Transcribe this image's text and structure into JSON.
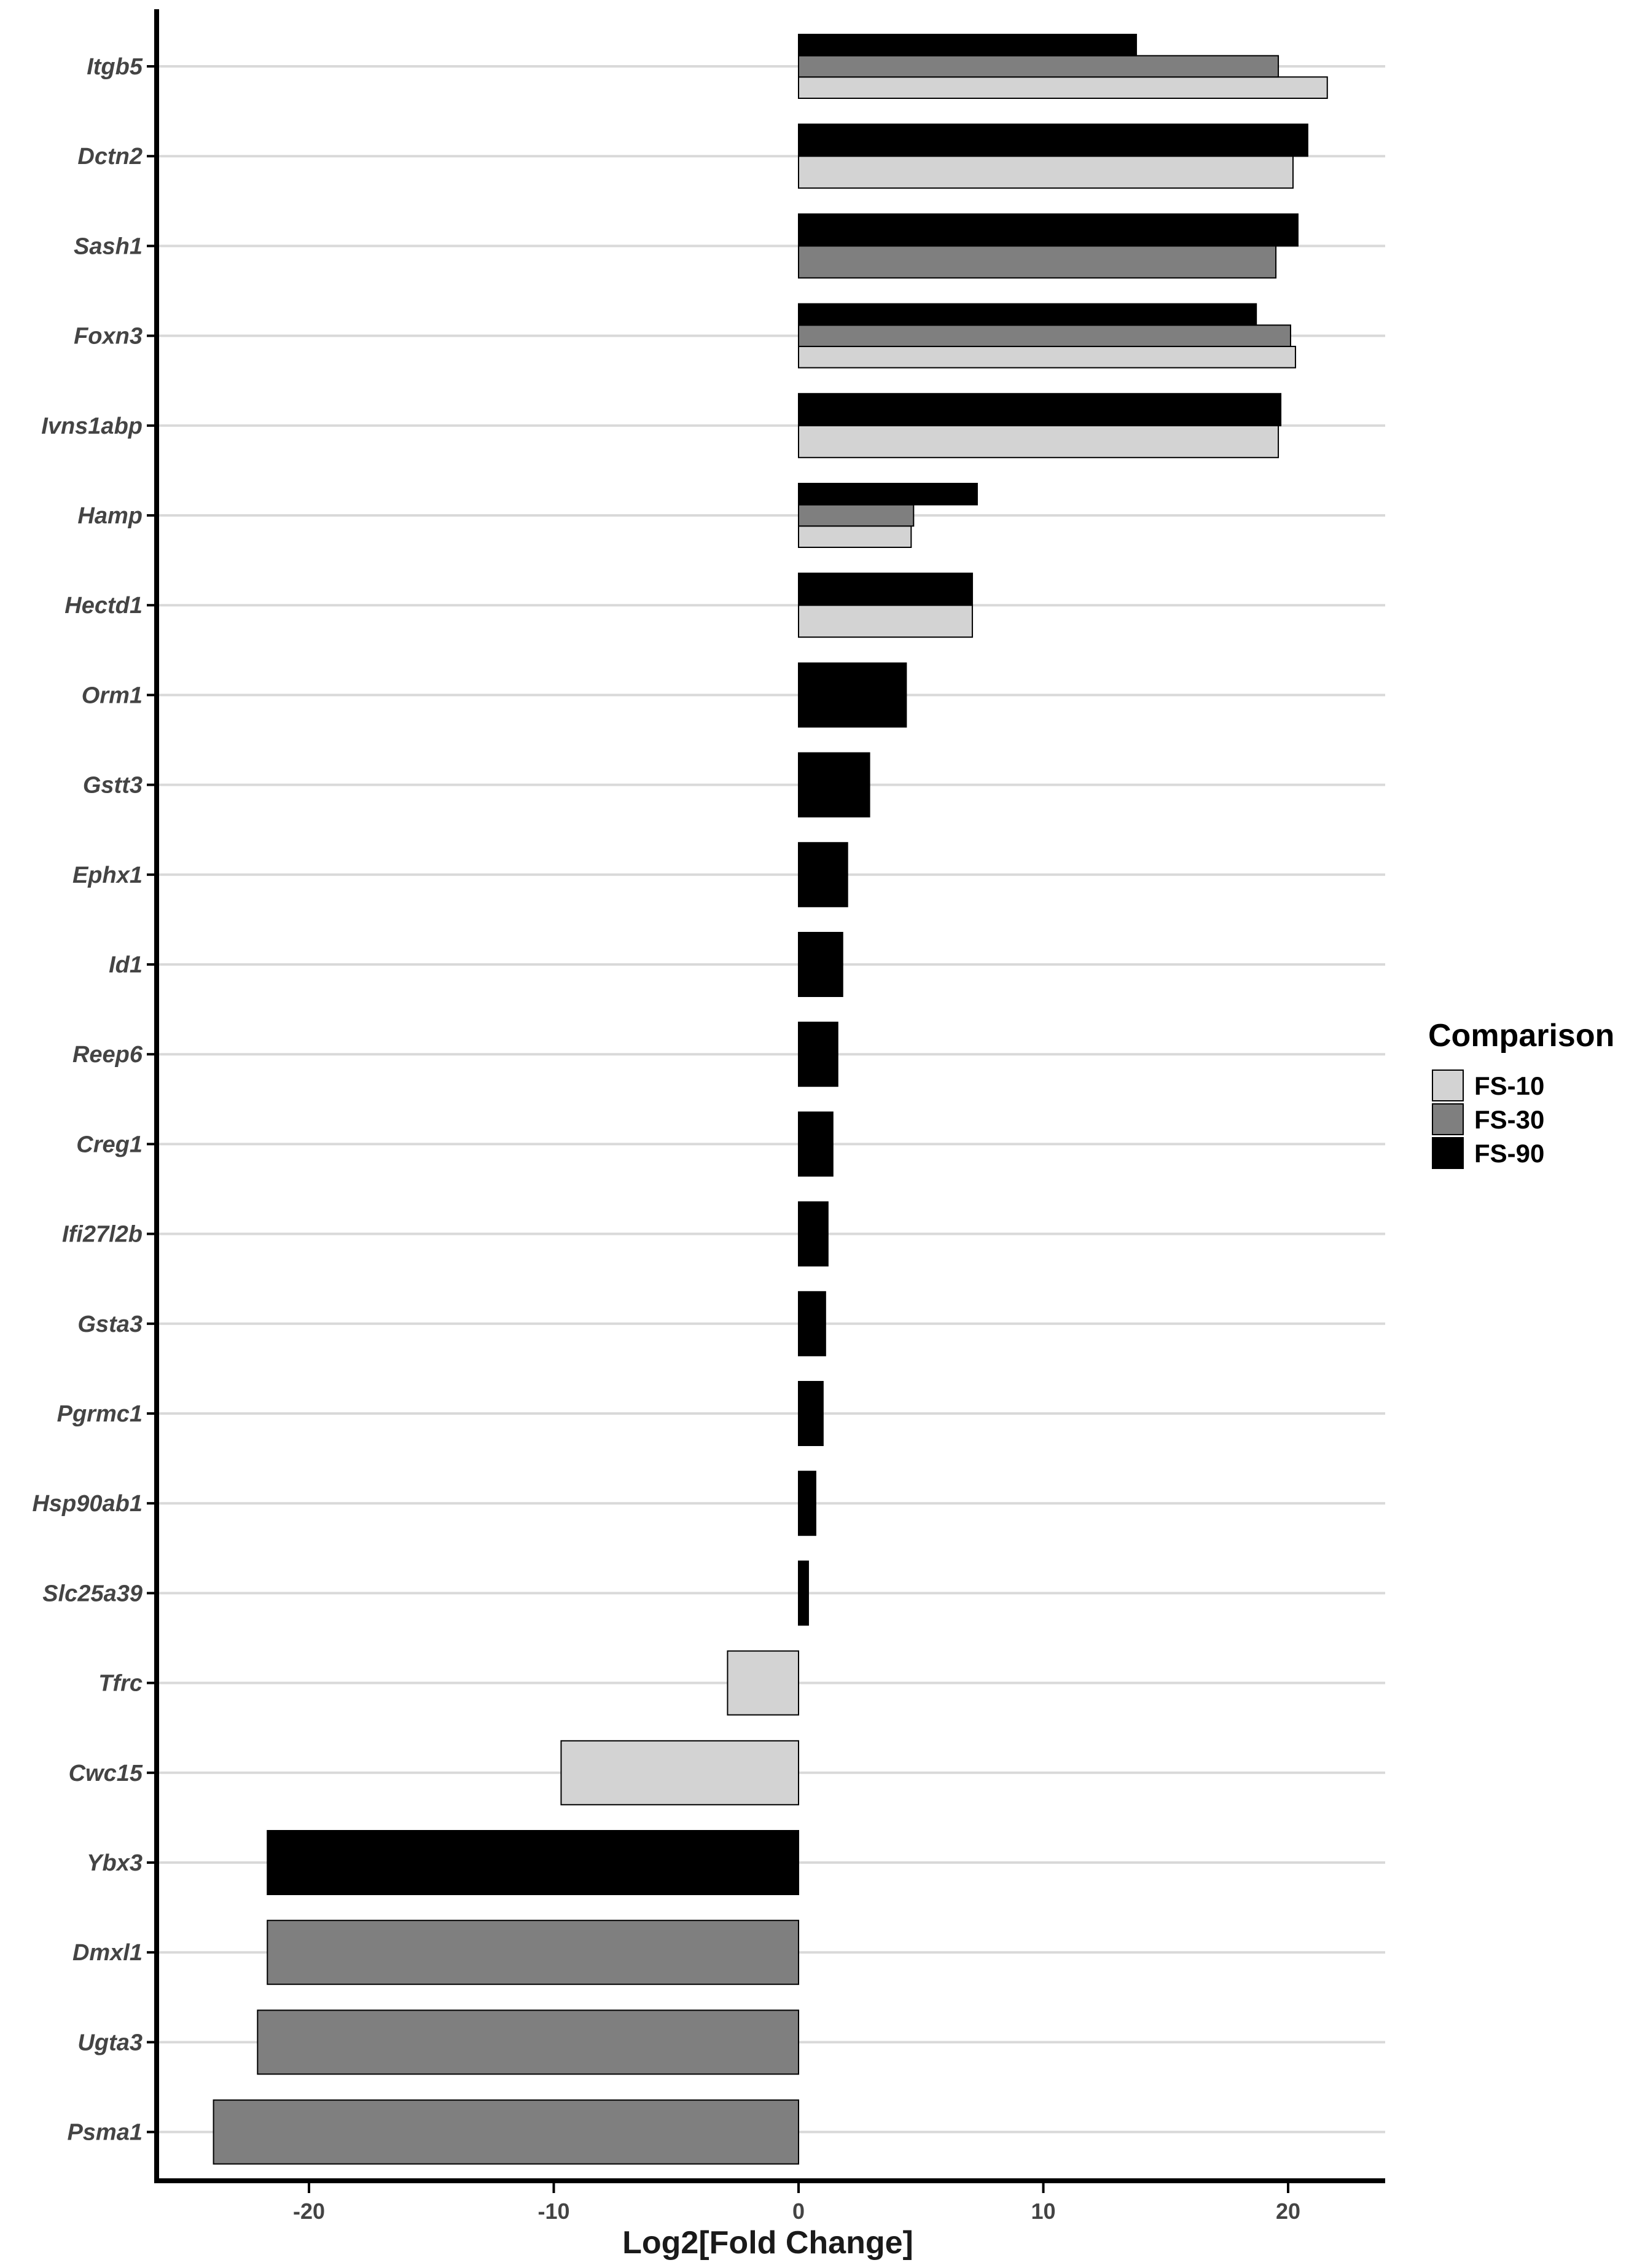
{
  "chart_data": {
    "type": "bar",
    "orientation": "horizontal",
    "title": "",
    "xlabel": "Log2[Fold Change]",
    "ylabel": "",
    "xlim": [
      -26.5,
      23.7
    ],
    "xticks": [
      -20,
      -10,
      0,
      10,
      20
    ],
    "xtick_labels": [
      "-20",
      "-10",
      "0",
      "10",
      "20"
    ],
    "grid": "horizontal major lines",
    "legend": {
      "title": "Comparison",
      "position": "right"
    },
    "categories": [
      "Itgb5",
      "Dctn2",
      "Sash1",
      "Foxn3",
      "Ivns1abp",
      "Hamp",
      "Hectd1",
      "Orm1",
      "Gstt3",
      "Ephx1",
      "Id1",
      "Reep6",
      "Creg1",
      "Ifi27l2b",
      "Gsta3",
      "Pgrmc1",
      "Hsp90ab1",
      "Slc25a39",
      "Tfrc",
      "Cwc15",
      "Ybx3",
      "Dmxl1",
      "Ugta3",
      "Psma1"
    ],
    "series": [
      {
        "name": "FS-10",
        "color": "#d3d3d3",
        "values": [
          21.6,
          20.2,
          null,
          20.3,
          19.6,
          4.6,
          7.1,
          null,
          null,
          null,
          null,
          null,
          null,
          null,
          null,
          null,
          null,
          null,
          -2.9,
          -9.7,
          null,
          null,
          null,
          null
        ]
      },
      {
        "name": "FS-30",
        "color": "#7f7f7f",
        "values": [
          19.6,
          null,
          19.5,
          20.1,
          null,
          4.7,
          null,
          null,
          null,
          null,
          null,
          null,
          null,
          null,
          null,
          null,
          null,
          null,
          null,
          null,
          null,
          -21.7,
          -22.1,
          -23.9
        ]
      },
      {
        "name": "FS-90",
        "color": "#000000",
        "values": [
          13.8,
          20.8,
          20.4,
          18.7,
          19.7,
          7.3,
          7.1,
          4.4,
          2.9,
          2.0,
          1.8,
          1.6,
          1.4,
          1.2,
          1.1,
          1.0,
          0.7,
          0.4,
          null,
          null,
          -21.7,
          null,
          null,
          null
        ]
      }
    ]
  }
}
